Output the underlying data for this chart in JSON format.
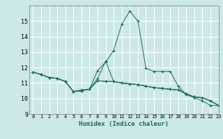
{
  "xlabel": "Humidex (Indice chaleur)",
  "background_color": "#cce8e8",
  "line_color": "#1a6b5a",
  "grid_color": "#ffffff",
  "xlim": [
    -0.5,
    23
  ],
  "ylim": [
    9,
    16
  ],
  "yticks": [
    9,
    10,
    11,
    12,
    13,
    14,
    15
  ],
  "xticks": [
    0,
    1,
    2,
    3,
    4,
    5,
    6,
    7,
    8,
    9,
    10,
    11,
    12,
    13,
    14,
    15,
    16,
    17,
    18,
    19,
    20,
    21,
    22,
    23
  ],
  "series": [
    [
      11.7,
      11.55,
      11.35,
      11.3,
      11.1,
      10.45,
      10.5,
      10.6,
      11.15,
      11.1,
      11.1,
      11.0,
      10.95,
      10.9,
      10.8,
      10.7,
      10.65,
      10.6,
      10.55,
      10.3,
      10.1,
      10.05,
      9.85,
      9.55
    ],
    [
      11.7,
      11.55,
      11.35,
      11.3,
      11.1,
      10.45,
      10.55,
      10.6,
      11.8,
      12.35,
      13.1,
      14.8,
      15.65,
      15.0,
      11.95,
      11.75,
      11.75,
      11.75,
      10.8,
      10.25,
      10.05,
      9.85,
      9.55,
      9.55
    ],
    [
      11.7,
      11.55,
      11.35,
      11.3,
      11.1,
      10.45,
      10.5,
      10.6,
      11.3,
      12.4,
      11.1,
      11.0,
      10.95,
      10.9,
      10.8,
      10.7,
      10.65,
      10.6,
      10.55,
      10.3,
      10.1,
      10.05,
      9.85,
      9.55
    ],
    [
      11.7,
      11.55,
      11.35,
      11.3,
      11.1,
      10.45,
      10.5,
      10.6,
      11.15,
      11.1,
      11.1,
      11.0,
      10.95,
      10.9,
      10.8,
      10.7,
      10.65,
      10.6,
      10.55,
      10.3,
      10.1,
      10.05,
      9.85,
      9.55
    ]
  ]
}
